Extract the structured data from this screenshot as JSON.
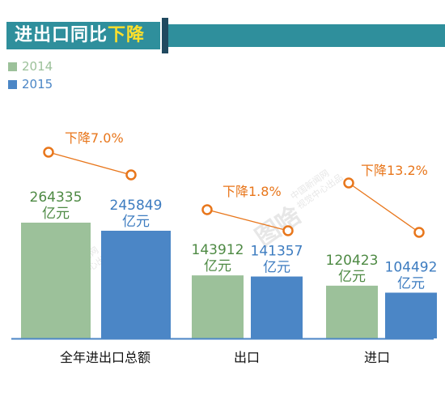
{
  "banner": {
    "title_part1": "进出口",
    "title_part2": "同比",
    "title_part3": "下降"
  },
  "legend": [
    {
      "label": "2014",
      "color": "#9cc19a"
    },
    {
      "label": "2015",
      "color": "#4b86c6"
    }
  ],
  "chart_data": {
    "type": "bar",
    "categories": [
      "全年进出口总额",
      "出口",
      "进口"
    ],
    "series": [
      {
        "name": "2014",
        "values": [
          264335,
          143912,
          120423
        ],
        "color": "#9cc19a",
        "label_color": "#4e8a44"
      },
      {
        "name": "2015",
        "values": [
          245849,
          141357,
          104492
        ],
        "color": "#4b86c6",
        "label_color": "#3d7cc0"
      }
    ],
    "unit": "亿元",
    "value_labels": [
      [
        "264335",
        "143912",
        "120423"
      ],
      [
        "245849",
        "141357",
        "104492"
      ]
    ],
    "annotations": [
      "下降7.0%",
      "下降1.8%",
      "下降13.2%"
    ],
    "annotation_color": "#e8761b",
    "ylim": [
      0,
      300000
    ],
    "grid": false
  },
  "watermark": {
    "brand": "图啥",
    "line1": "中国新闻网",
    "line2": "视觉中心出品"
  }
}
